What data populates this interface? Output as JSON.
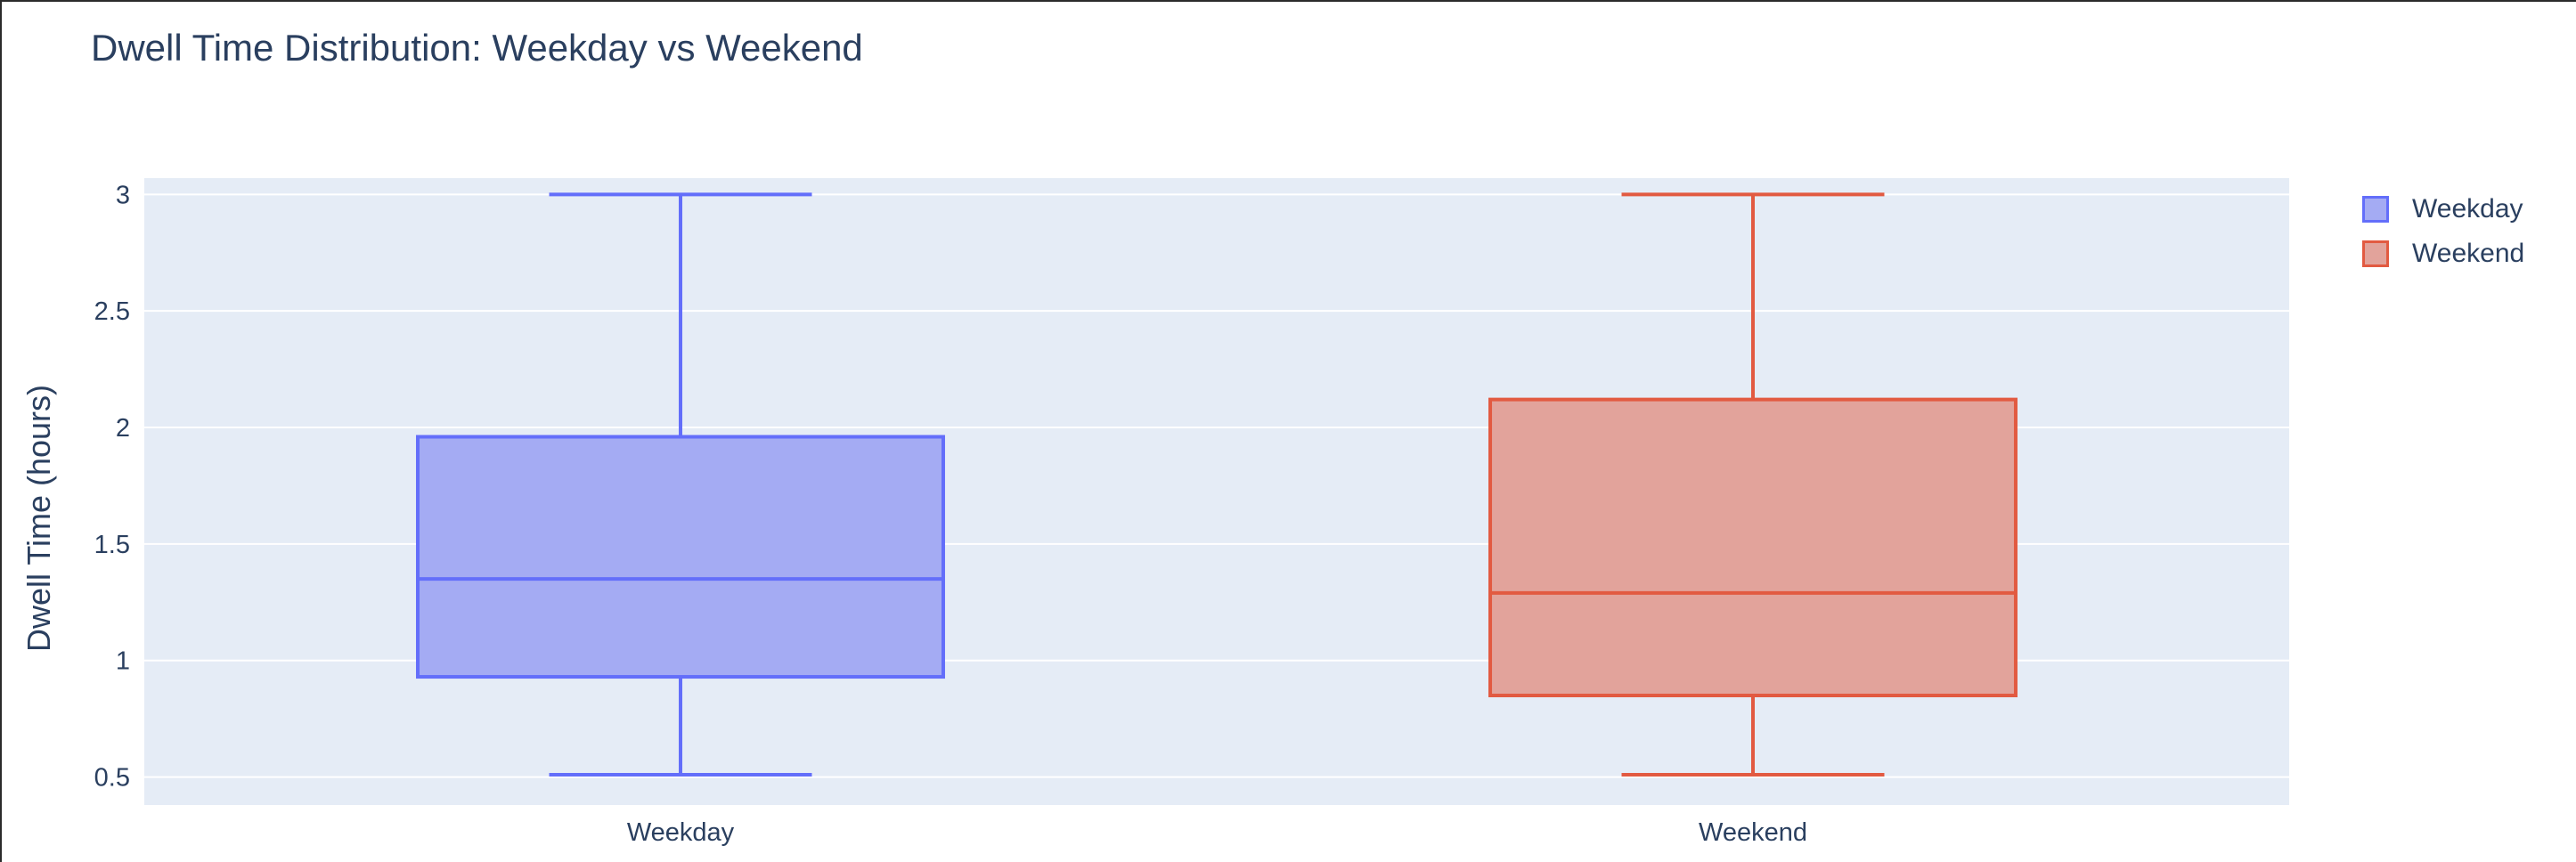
{
  "chart_data": {
    "type": "box",
    "title": "Dwell Time Distribution: Weekday vs Weekend",
    "xlabel": "",
    "ylabel": "Dwell Time (hours)",
    "categories": [
      "Weekday",
      "Weekend"
    ],
    "ylim": [
      0.38,
      3.07
    ],
    "yticks": [
      0.5,
      1,
      1.5,
      2,
      2.5,
      3
    ],
    "ytick_labels": [
      "0.5",
      "1",
      "1.5",
      "2",
      "2.5",
      "3"
    ],
    "grid": true,
    "legend_position": "top-right",
    "series": [
      {
        "name": "Weekday",
        "min": 0.51,
        "q1": 0.93,
        "median": 1.35,
        "q3": 1.96,
        "max": 3.0,
        "line_color": "#636efa",
        "fill_color": "#a4abf3"
      },
      {
        "name": "Weekend",
        "min": 0.51,
        "q1": 0.85,
        "median": 1.29,
        "q3": 2.12,
        "max": 3.0,
        "line_color": "#e25a41",
        "fill_color": "#e2a39b"
      }
    ]
  },
  "colors": {
    "plot_background": "#e5ecf6",
    "grid": "#ffffff",
    "text": "#2a3f5f"
  }
}
